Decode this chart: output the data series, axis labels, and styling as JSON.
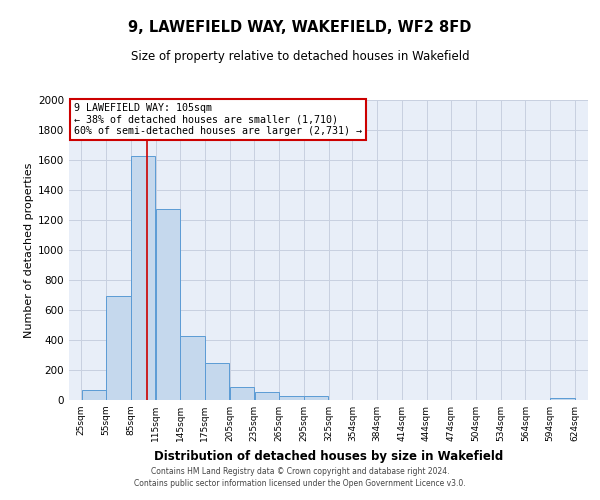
{
  "title": "9, LAWEFIELD WAY, WAKEFIELD, WF2 8FD",
  "subtitle": "Size of property relative to detached houses in Wakefield",
  "xlabel": "Distribution of detached houses by size in Wakefield",
  "ylabel": "Number of detached properties",
  "bar_left_edges": [
    25,
    55,
    85,
    115,
    145,
    175,
    205,
    235,
    265,
    295,
    325,
    354,
    384,
    414,
    444,
    474,
    504,
    534,
    564,
    594
  ],
  "bar_widths": [
    30,
    30,
    30,
    30,
    30,
    30,
    30,
    30,
    30,
    30,
    29,
    30,
    30,
    30,
    30,
    30,
    30,
    30,
    30,
    30
  ],
  "bar_heights": [
    65,
    695,
    1630,
    1275,
    430,
    250,
    90,
    55,
    30,
    25,
    0,
    0,
    0,
    0,
    0,
    0,
    0,
    0,
    0,
    15
  ],
  "bar_color": "#c5d8ed",
  "bar_edge_color": "#5b9bd5",
  "bg_color": "#e8eef8",
  "grid_color": "#c8d0e0",
  "property_line_x": 105,
  "property_line_color": "#cc0000",
  "annotation_text": "9 LAWEFIELD WAY: 105sqm\n← 38% of detached houses are smaller (1,710)\n60% of semi-detached houses are larger (2,731) →",
  "annotation_box_color": "#ffffff",
  "annotation_box_edge_color": "#cc0000",
  "ylim": [
    0,
    2000
  ],
  "yticks": [
    0,
    200,
    400,
    600,
    800,
    1000,
    1200,
    1400,
    1600,
    1800,
    2000
  ],
  "x_tick_labels": [
    "25sqm",
    "55sqm",
    "85sqm",
    "115sqm",
    "145sqm",
    "175sqm",
    "205sqm",
    "235sqm",
    "265sqm",
    "295sqm",
    "325sqm",
    "354sqm",
    "384sqm",
    "414sqm",
    "444sqm",
    "474sqm",
    "504sqm",
    "534sqm",
    "564sqm",
    "594sqm",
    "624sqm"
  ],
  "x_tick_positions": [
    25,
    55,
    85,
    115,
    145,
    175,
    205,
    235,
    265,
    295,
    325,
    354,
    384,
    414,
    444,
    474,
    504,
    534,
    564,
    594,
    624
  ],
  "xlim": [
    10,
    640
  ],
  "footer_line1": "Contains HM Land Registry data © Crown copyright and database right 2024.",
  "footer_line2": "Contains public sector information licensed under the Open Government Licence v3.0."
}
